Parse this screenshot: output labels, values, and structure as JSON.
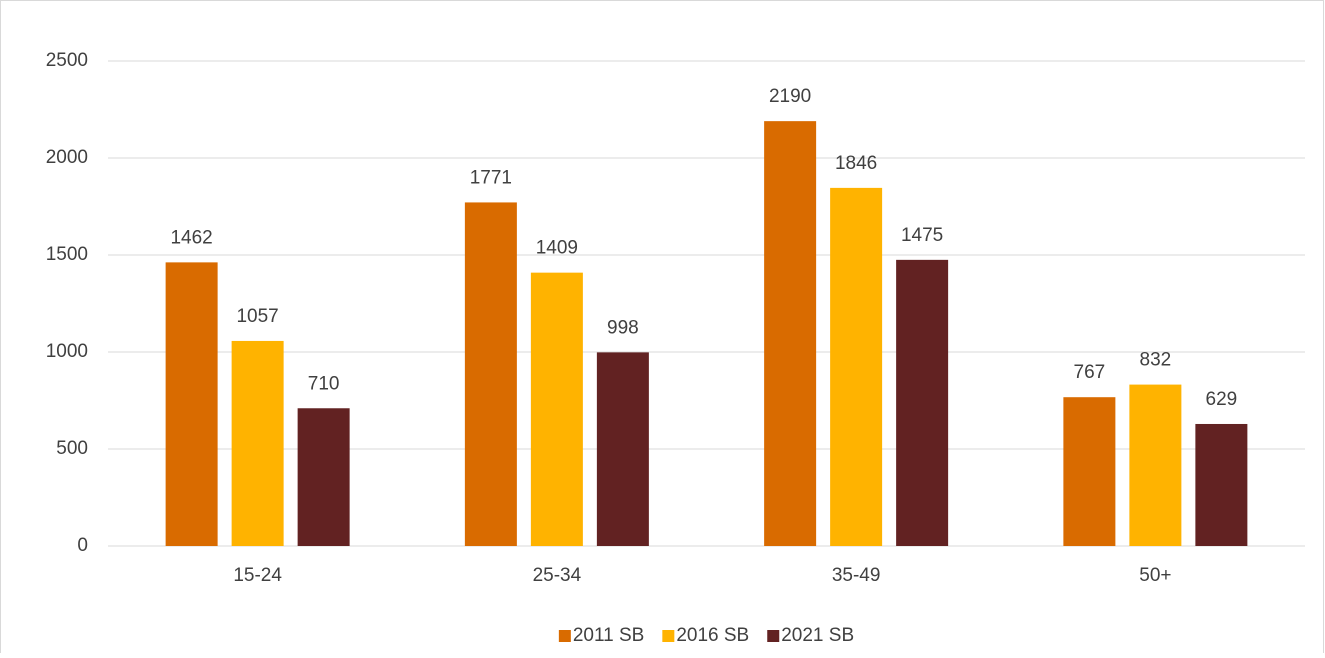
{
  "chart_data": {
    "type": "bar",
    "categories": [
      "15-24",
      "25-34",
      "35-49",
      "50+"
    ],
    "series": [
      {
        "name": "2011 SB",
        "color": "#d96b00",
        "values": [
          1462,
          1771,
          2190,
          767
        ]
      },
      {
        "name": "2016 SB",
        "color": "#ffb300",
        "values": [
          1057,
          1409,
          1846,
          832
        ]
      },
      {
        "name": "2021 SB",
        "color": "#622222",
        "values": [
          710,
          998,
          1475,
          629
        ]
      }
    ],
    "ylim": [
      0,
      2500
    ],
    "yticks": [
      0,
      500,
      1000,
      1500,
      2000,
      2500
    ],
    "grid": true,
    "legend": "bottom"
  }
}
